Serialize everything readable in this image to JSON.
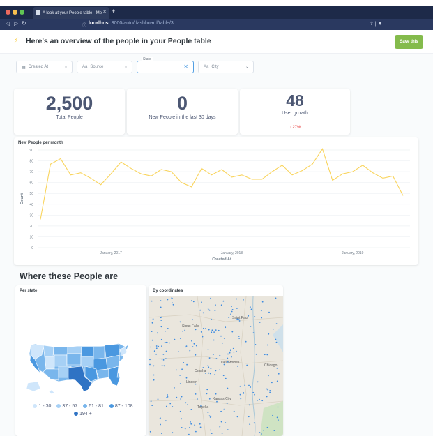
{
  "browser": {
    "tab_title": "A look at your People table · Me",
    "url_host": "localhost",
    "url_path": ":3000/auto/dashboard/table/3"
  },
  "header": {
    "title": "Here's an overview of the people in your People table",
    "save_label": "Save this"
  },
  "filters": [
    {
      "icon": "calendar-icon",
      "label": "Created At"
    },
    {
      "icon": "text-icon",
      "prefix": "Aa",
      "label": "Source"
    },
    {
      "legend": "State",
      "value": ""
    },
    {
      "icon": "text-icon",
      "prefix": "Aa",
      "label": "City"
    }
  ],
  "kpis": [
    {
      "value": "2,500",
      "label": "Total People"
    },
    {
      "value": "0",
      "label": "New People in the last 30 days"
    },
    {
      "value": "48",
      "label": "User growth",
      "delta": "27%",
      "delta_arrow": "↓"
    }
  ],
  "colors": {
    "accent": "#509ee3",
    "save": "#84bb4c",
    "line": "#f9d45c",
    "down": "#ed6e6e",
    "map_water": "#d6e4ea",
    "map_land": "#eae6dd"
  },
  "line_chart": {
    "title": "New People per month",
    "chart_data": {
      "type": "line",
      "ylabel": "Count",
      "xlabel": "Created At",
      "ylim": [
        0,
        90
      ],
      "yticks": [
        0,
        10,
        20,
        30,
        40,
        50,
        60,
        70,
        80,
        90
      ],
      "xticks": [
        "January, 2017",
        "January, 2018",
        "January, 2019"
      ],
      "grid": true,
      "series": [
        {
          "values": [
            26,
            77,
            82,
            67,
            69,
            64,
            58,
            68,
            79,
            73,
            68,
            66,
            72,
            70,
            60,
            56,
            73,
            67,
            72,
            65,
            67,
            63,
            63,
            70,
            76,
            67,
            71,
            77,
            91,
            62,
            68,
            70,
            76,
            69,
            64,
            66,
            48
          ]
        }
      ]
    }
  },
  "section_title": "Where these People are",
  "per_state": {
    "title": "Per state",
    "legend": [
      {
        "label": "1 - 30",
        "color": "#cfe6fb"
      },
      {
        "label": "37 - 57",
        "color": "#a6d0f5"
      },
      {
        "label": "61 - 81",
        "color": "#79b6ec"
      },
      {
        "label": "87 - 108",
        "color": "#4a98e0"
      },
      {
        "label": "194 +",
        "color": "#2f73c4"
      }
    ]
  },
  "by_coordinates": {
    "title": "By coordinates",
    "places": [
      "Saint Paul",
      "Sioux Falls",
      "Des Moines",
      "Omaha",
      "Lincoln",
      "Kansas City",
      "Topeka",
      "Chicago"
    ]
  }
}
